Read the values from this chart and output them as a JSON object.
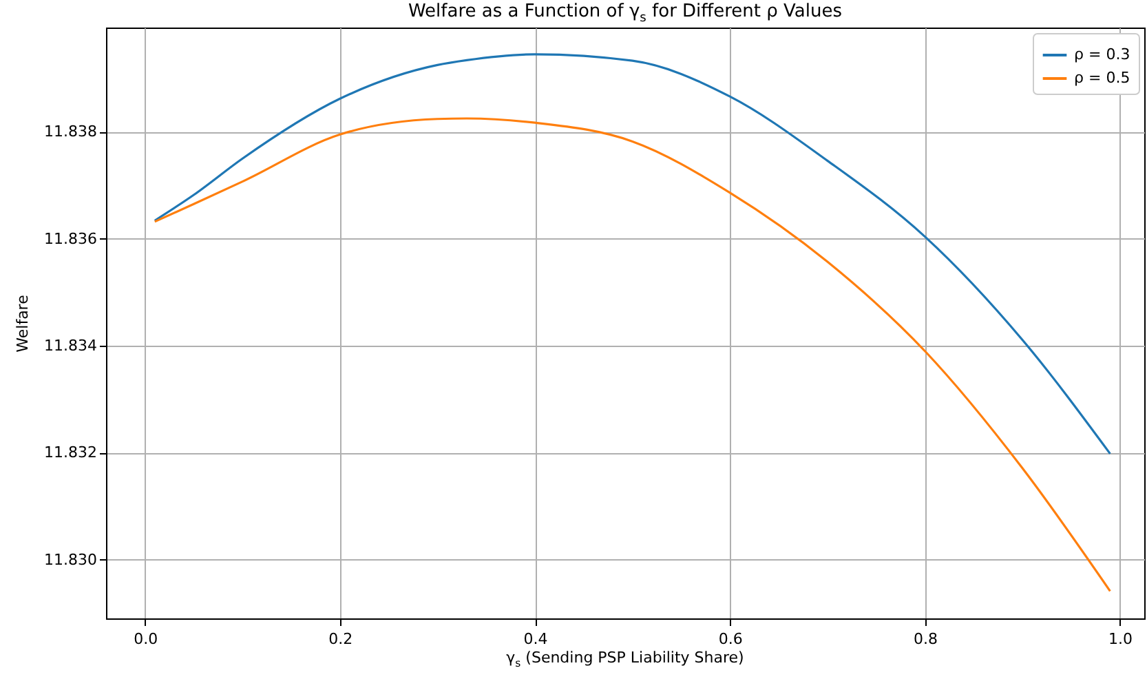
{
  "chart_data": {
    "type": "line",
    "title": "Welfare as a Function of γ$_{s}$ for Different ρ Values",
    "xlabel": "γ$_{s}$ (Sending PSP Liability Share)",
    "ylabel": "Welfare",
    "x": [
      0.01,
      0.05,
      0.1,
      0.2,
      0.3,
      0.33,
      0.4,
      0.5,
      0.6,
      0.7,
      0.8,
      0.9,
      0.99
    ],
    "series": [
      {
        "name": "ρ = 0.3",
        "color": "#1f77b4",
        "values": [
          11.83634,
          11.83682,
          11.8375,
          11.83862,
          11.83925,
          11.83934,
          11.83945,
          11.83933,
          11.83866,
          11.83746,
          11.83604,
          11.83411,
          11.83198
        ]
      },
      {
        "name": "ρ = 0.5",
        "color": "#ff7f0e",
        "values": [
          11.83632,
          11.83665,
          11.83707,
          11.83795,
          11.83824,
          11.83825,
          11.83817,
          11.83782,
          11.83686,
          11.83557,
          11.8339,
          11.83171,
          11.82941
        ]
      }
    ],
    "xlim": [
      -0.04,
      1.025
    ],
    "ylim": [
      11.8289,
      11.83995
    ],
    "xticks": [
      {
        "value": 0,
        "label": "0.0"
      },
      0.2,
      0.4,
      0.6,
      0.8,
      {
        "value": 1,
        "label": "1.0"
      }
    ],
    "yticks": [
      {
        "value": 11.83,
        "label": "11.830"
      },
      11.832,
      11.834,
      11.836,
      11.838
    ],
    "grid": true,
    "legend": "top right",
    "line_style": "solid"
  }
}
